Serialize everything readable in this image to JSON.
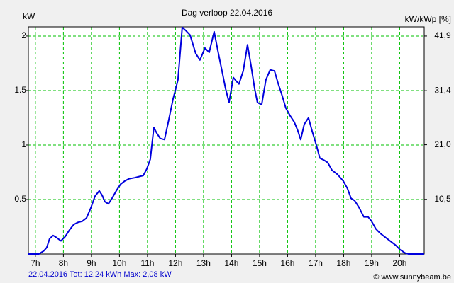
{
  "chart_data": {
    "type": "line",
    "title": "Dag  verloop 22.04.2016",
    "ylabel": "kW",
    "y2label": "kW/kWp [%]",
    "footer": "22.04.2016 Tot: 12,24 kWh Max: 2,08 kW",
    "credit": "© www.sunnybeam.be",
    "x": [
      6.747,
      7.127,
      7.304,
      7.405,
      7.506,
      7.633,
      7.759,
      7.911,
      8.063,
      8.215,
      8.367,
      8.519,
      8.671,
      8.823,
      8.975,
      9.127,
      9.278,
      9.38,
      9.481,
      9.608,
      9.734,
      9.886,
      10.038,
      10.19,
      10.342,
      10.544,
      10.696,
      10.848,
      10.975,
      11.101,
      11.228,
      11.329,
      11.456,
      11.608,
      11.759,
      11.911,
      12.013,
      12.089,
      12.165,
      12.241,
      12.367,
      12.519,
      12.722,
      12.873,
      13.051,
      13.203,
      13.38,
      13.532,
      13.684,
      13.785,
      13.911,
      14.063,
      14.19,
      14.266,
      14.418,
      14.57,
      14.696,
      14.823,
      14.924,
      15.076,
      15.228,
      15.38,
      15.532,
      15.658,
      15.81,
      15.937,
      16.089,
      16.241,
      16.367,
      16.468,
      16.595,
      16.747,
      16.873,
      17.025,
      17.152,
      17.304,
      17.43,
      17.582,
      17.785,
      17.987,
      18.139,
      18.266,
      18.392,
      18.544,
      18.722,
      18.873,
      19.0,
      19.152,
      19.304,
      19.506,
      19.709,
      19.861,
      20.013,
      20.19,
      20.316,
      20.873
    ],
    "series": [
      {
        "name": "kW",
        "color": "#0000dd",
        "values": [
          0,
          0,
          0.03,
          0.06,
          0.14,
          0.17,
          0.15,
          0.12,
          0.16,
          0.22,
          0.27,
          0.29,
          0.3,
          0.33,
          0.42,
          0.53,
          0.58,
          0.54,
          0.48,
          0.46,
          0.51,
          0.58,
          0.64,
          0.67,
          0.69,
          0.7,
          0.71,
          0.72,
          0.78,
          0.87,
          1.16,
          1.11,
          1.06,
          1.05,
          1.23,
          1.42,
          1.52,
          1.6,
          1.84,
          2.08,
          2.05,
          2.01,
          1.84,
          1.78,
          1.89,
          1.85,
          2.04,
          1.84,
          1.65,
          1.52,
          1.39,
          1.62,
          1.58,
          1.56,
          1.68,
          1.92,
          1.73,
          1.52,
          1.39,
          1.37,
          1.6,
          1.69,
          1.68,
          1.57,
          1.45,
          1.34,
          1.27,
          1.21,
          1.13,
          1.05,
          1.19,
          1.25,
          1.13,
          1.0,
          0.88,
          0.86,
          0.84,
          0.77,
          0.73,
          0.67,
          0.6,
          0.51,
          0.49,
          0.43,
          0.34,
          0.34,
          0.3,
          0.23,
          0.19,
          0.15,
          0.11,
          0.08,
          0.04,
          0.01,
          0,
          0
        ]
      }
    ],
    "xlim": [
      6.75,
      20.875
    ],
    "xticks": [
      {
        "value": 7,
        "label": "7h"
      },
      {
        "value": 8,
        "label": "8h"
      },
      {
        "value": 9,
        "label": "9h"
      },
      {
        "value": 10,
        "label": "10h"
      },
      {
        "value": 11,
        "label": "11h"
      },
      {
        "value": 12,
        "label": "12h"
      },
      {
        "value": 13,
        "label": "13h"
      },
      {
        "value": 14,
        "label": "14h"
      },
      {
        "value": 15,
        "label": "15h"
      },
      {
        "value": 16,
        "label": "16h"
      },
      {
        "value": 17,
        "label": "17h"
      },
      {
        "value": 18,
        "label": "18h"
      },
      {
        "value": 19,
        "label": "19h"
      },
      {
        "value": 20,
        "label": "20h"
      }
    ],
    "ylim": [
      0,
      2.084
    ],
    "yticks": [
      0.5,
      1,
      1.5,
      2
    ],
    "y2lim": [
      0,
      43.66
    ],
    "y2ticks": [
      {
        "value": 10.5,
        "label": "10,5"
      },
      {
        "value": 21.0,
        "label": "21,0"
      },
      {
        "value": 31.4,
        "label": "31,4"
      },
      {
        "value": 41.9,
        "label": "41,9"
      }
    ],
    "grid": true,
    "grid_color": "#00c000",
    "footer_color": "#0000cc"
  }
}
